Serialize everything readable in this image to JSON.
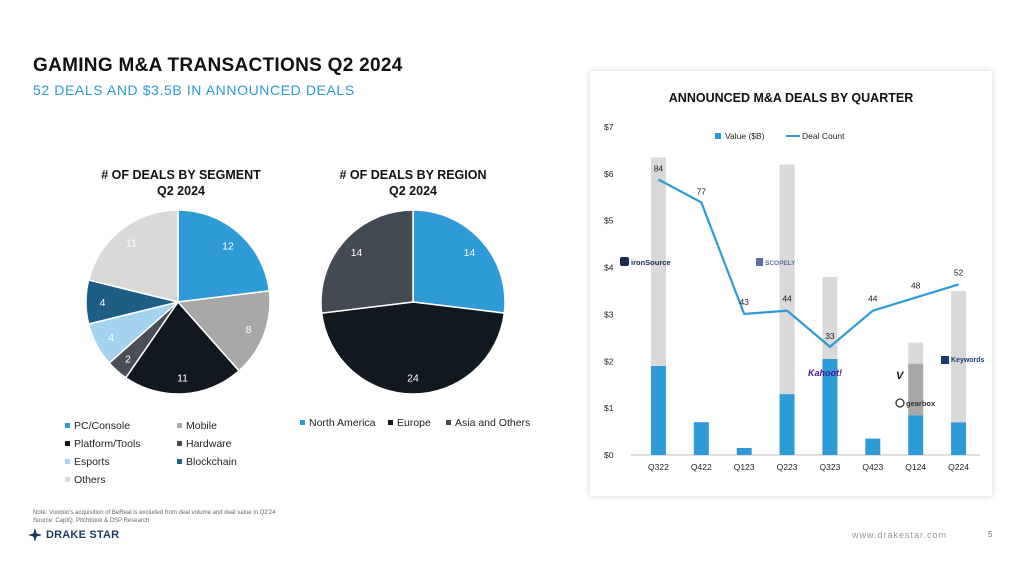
{
  "header": {
    "title": "GAMING M&A TRANSACTIONS Q2 2024",
    "subtitle": "52 DEALS AND $3.5B IN ANNOUNCED DEALS"
  },
  "footer": {
    "note_line1": "Note: Voodoo's acquisition of BeReal is excluded from deal volume and deal value in Q2'24",
    "note_line2": "Source: CapIQ, Pitchbook & DSP Research",
    "logo_text": "DRAKE STAR",
    "url": "www.drakestar.com",
    "page_number": "5"
  },
  "chart_data": [
    {
      "type": "pie",
      "title_line1": "# OF DEALS BY SEGMENT",
      "title_line2": "Q2 2024",
      "slices": [
        {
          "label": "PC/Console",
          "value": 12,
          "color": "#2e9bd6",
          "text_color": "#ffffff"
        },
        {
          "label": "Mobile",
          "value": 8,
          "color": "#a8a8a8",
          "text_color": "#ffffff"
        },
        {
          "label": "Platform/Tools",
          "value": 11,
          "color": "#111820",
          "text_color": "#ffffff"
        },
        {
          "label": "Hardware",
          "value": 2,
          "color": "#4a4f57",
          "text_color": "#ffffff"
        },
        {
          "label": "Esports",
          "value": 4,
          "color": "#a3d3ee",
          "text_color": "#ffffff"
        },
        {
          "label": "Blockchain",
          "value": 4,
          "color": "#1d5d86",
          "text_color": "#ffffff"
        },
        {
          "label": "Others",
          "value": 11,
          "color": "#d9d9d9",
          "text_color": "#ffffff"
        }
      ]
    },
    {
      "type": "pie",
      "title_line1": "# OF DEALS BY REGION",
      "title_line2": "Q2 2024",
      "slices": [
        {
          "label": "North America",
          "value": 14,
          "color": "#2e9bd6",
          "text_color": "#ffffff"
        },
        {
          "label": "Europe",
          "value": 24,
          "color": "#111820",
          "text_color": "#ffffff"
        },
        {
          "label": "Asia and Others",
          "value": 14,
          "color": "#434a53",
          "text_color": "#ffffff"
        }
      ]
    },
    {
      "type": "bar",
      "title": "ANNOUNCED M&A DEALS BY QUARTER",
      "categories": [
        "Q322",
        "Q422",
        "Q123",
        "Q223",
        "Q323",
        "Q423",
        "Q124",
        "Q224"
      ],
      "ylim": [
        0,
        7
      ],
      "y_ticks": [
        "$0",
        "$1",
        "$2",
        "$3",
        "$4",
        "$5",
        "$6",
        "$7"
      ],
      "legend": {
        "value_label": "Value ($B)",
        "count_label": "Deal Count"
      },
      "series": [
        {
          "name": "Value ($B)",
          "color": "#2e9bd6",
          "values": [
            1.9,
            0.7,
            0.15,
            1.3,
            2.05,
            0.35,
            0.85,
            0.7
          ]
        },
        {
          "name": "",
          "color": "#d9d9d9",
          "values": [
            4.45,
            0,
            0,
            4.9,
            1.75,
            0,
            0.45,
            2.8
          ]
        },
        {
          "name": "",
          "color": "#a8a8a8",
          "values": [
            0,
            0,
            0,
            0,
            0,
            0,
            1.1,
            0
          ]
        },
        {
          "name": "Deal Count",
          "color": "#2e9bd6",
          "values": [
            84,
            77,
            43,
            44,
            33,
            44,
            48,
            52
          ]
        }
      ],
      "deal_count_labels": [
        "84",
        "77",
        "43",
        "44",
        "33",
        "44",
        "48",
        "52"
      ],
      "logos": [
        "ironSource",
        "SCOPELY",
        "Kahoot!",
        "gearbox",
        "Keywords"
      ]
    }
  ]
}
